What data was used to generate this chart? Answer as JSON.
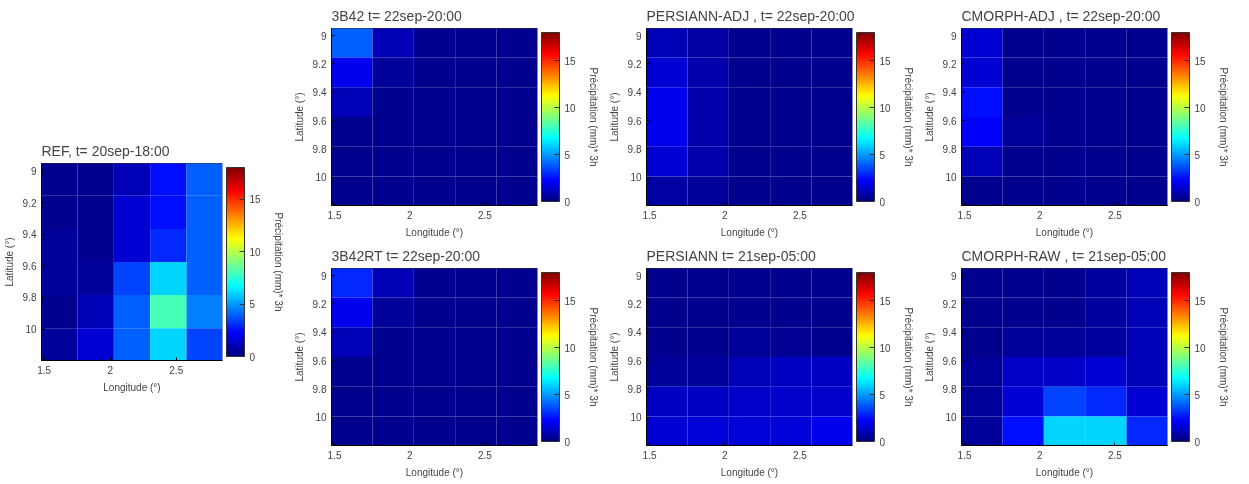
{
  "chart_data": [
    {
      "type": "heatmap",
      "title": "REF,   t= 20sep-18:00",
      "xlabel": "Longitude (°)",
      "ylabel": "Latitude (°)",
      "clabel": "Précipitation (mm)* 3h",
      "x": [
        1.615,
        1.89,
        2.165,
        2.44,
        2.715
      ],
      "y": [
        9.05,
        9.26,
        9.47,
        9.68,
        9.89,
        10.1
      ],
      "cells": [
        [
          0.3,
          0.3,
          1.0,
          2.5,
          4
        ],
        [
          0.3,
          0.3,
          1.5,
          2.5,
          4
        ],
        [
          0.5,
          0.3,
          1.5,
          3,
          4
        ],
        [
          0.5,
          0.5,
          3.5,
          6,
          4
        ],
        [
          0.3,
          1.0,
          4,
          8,
          4.5
        ],
        [
          0.5,
          1.5,
          4,
          6,
          3.5
        ]
      ],
      "xlim": [
        1.48,
        2.85
      ],
      "xticks": [
        1.5,
        2,
        2.5
      ],
      "ylim": [
        10.2,
        8.95
      ],
      "yticks": [
        9,
        9.2,
        9.4,
        9.6,
        9.8,
        10
      ],
      "clim": [
        0,
        18
      ],
      "cticks": [
        0,
        5,
        10,
        15
      ]
    },
    {
      "type": "heatmap",
      "title": "3B42    t= 22sep-20:00",
      "xlabel": "Longitude (°)",
      "ylabel": "Latitude (°)",
      "clabel": "Précipitation (mm)* 3h",
      "x": [
        1.615,
        1.89,
        2.165,
        2.44,
        2.715
      ],
      "y": [
        9.05,
        9.26,
        9.47,
        9.68,
        9.89,
        10.1
      ],
      "cells": [
        [
          4,
          1,
          0.3,
          0.3,
          0.3
        ],
        [
          2,
          0.5,
          0.3,
          0.3,
          0.3
        ],
        [
          1,
          0.3,
          0.3,
          0.3,
          0.3
        ],
        [
          0.3,
          0.3,
          0.3,
          0.3,
          0.3
        ],
        [
          0.3,
          0.3,
          0.3,
          0.3,
          0.3
        ],
        [
          0.3,
          0.3,
          0.3,
          0.3,
          0.3
        ]
      ],
      "xlim": [
        1.48,
        2.85
      ],
      "xticks": [
        1.5,
        2,
        2.5
      ],
      "ylim": [
        10.2,
        8.95
      ],
      "yticks": [
        9,
        9.2,
        9.4,
        9.6,
        9.8,
        10
      ],
      "clim": [
        0,
        18
      ],
      "cticks": [
        0,
        5,
        10,
        15
      ]
    },
    {
      "type": "heatmap",
      "title": "PERSIANN-ADJ ,   t= 22sep-20:00",
      "xlabel": "Longitude (°)",
      "ylabel": "Latitude (°)",
      "clabel": "Précipitation (mm)* 3h",
      "x": [
        1.615,
        1.89,
        2.165,
        2.44,
        2.715
      ],
      "y": [
        9.05,
        9.26,
        9.47,
        9.68,
        9.89,
        10.1
      ],
      "cells": [
        [
          1,
          0.7,
          0.3,
          0.3,
          0.3
        ],
        [
          1.5,
          0.8,
          0.3,
          0.3,
          0.3
        ],
        [
          2,
          0.8,
          0.3,
          0.3,
          0.3
        ],
        [
          2,
          0.8,
          0.3,
          0.3,
          0.3
        ],
        [
          1.5,
          0.8,
          0.3,
          0.3,
          0.3
        ],
        [
          0.7,
          0.5,
          0.3,
          0.3,
          0.3
        ]
      ],
      "xlim": [
        1.48,
        2.85
      ],
      "xticks": [
        1.5,
        2,
        2.5
      ],
      "ylim": [
        10.2,
        8.95
      ],
      "yticks": [
        9,
        9.2,
        9.4,
        9.6,
        9.8,
        10
      ],
      "clim": [
        0,
        18
      ],
      "cticks": [
        0,
        5,
        10,
        15
      ]
    },
    {
      "type": "heatmap",
      "title": "CMORPH-ADJ ,   t= 22sep-20:00",
      "xlabel": "Longitude (°)",
      "ylabel": "Latitude (°)",
      "clabel": "Précipitation (mm)* 3h",
      "x": [
        1.615,
        1.89,
        2.165,
        2.44,
        2.715
      ],
      "y": [
        9.05,
        9.26,
        9.47,
        9.68,
        9.89,
        10.1
      ],
      "cells": [
        [
          1.5,
          0.3,
          0.3,
          0.3,
          0.3
        ],
        [
          1.5,
          0.3,
          0.3,
          0.3,
          0.3
        ],
        [
          2.5,
          0.3,
          0.3,
          0.3,
          0.3
        ],
        [
          2.2,
          0.5,
          0.3,
          0.3,
          0.3
        ],
        [
          1,
          0.3,
          0.3,
          0.3,
          0.3
        ],
        [
          0.3,
          0.3,
          0.3,
          0.3,
          0.3
        ]
      ],
      "xlim": [
        1.48,
        2.85
      ],
      "xticks": [
        1.5,
        2,
        2.5
      ],
      "ylim": [
        10.2,
        8.95
      ],
      "yticks": [
        9,
        9.2,
        9.4,
        9.6,
        9.8,
        10
      ],
      "clim": [
        0,
        18
      ],
      "cticks": [
        0,
        5,
        10,
        15
      ]
    },
    {
      "type": "heatmap",
      "title": "3B42RT    t= 22sep-20:00",
      "xlabel": "Longitude (°)",
      "ylabel": "Latitude (°)",
      "clabel": "Précipitation (mm)* 3h",
      "x": [
        1.615,
        1.89,
        2.165,
        2.44,
        2.715
      ],
      "y": [
        9.05,
        9.26,
        9.47,
        9.68,
        9.89,
        10.1
      ],
      "cells": [
        [
          3,
          1,
          0.3,
          0.3,
          0.3
        ],
        [
          2,
          0.5,
          0.3,
          0.3,
          0.3
        ],
        [
          1,
          0.3,
          0.3,
          0.3,
          0.3
        ],
        [
          0.3,
          0.3,
          0.3,
          0.3,
          0.3
        ],
        [
          0.3,
          0.3,
          0.3,
          0.3,
          0.3
        ],
        [
          0.3,
          0.3,
          0.3,
          0.3,
          0.3
        ]
      ],
      "xlim": [
        1.48,
        2.85
      ],
      "xticks": [
        1.5,
        2,
        2.5
      ],
      "ylim": [
        10.2,
        8.95
      ],
      "yticks": [
        9,
        9.2,
        9.4,
        9.6,
        9.8,
        10
      ],
      "clim": [
        0,
        18
      ],
      "cticks": [
        0,
        5,
        10,
        15
      ]
    },
    {
      "type": "heatmap",
      "title": "PERSIANN    t= 21sep-05:00",
      "xlabel": "Longitude (°)",
      "ylabel": "Latitude (°)",
      "clabel": "Précipitation (mm)* 3h",
      "x": [
        1.615,
        1.89,
        2.165,
        2.44,
        2.715
      ],
      "y": [
        9.05,
        9.26,
        9.47,
        9.68,
        9.89,
        10.1
      ],
      "cells": [
        [
          0.3,
          0.3,
          0.3,
          0.3,
          0.3
        ],
        [
          0.3,
          0.3,
          0.3,
          0.3,
          0.3
        ],
        [
          0.3,
          0.3,
          0.5,
          0.4,
          0.3
        ],
        [
          0.5,
          0.5,
          1,
          1.2,
          1.2
        ],
        [
          1.2,
          1.2,
          1.4,
          1.4,
          1.4
        ],
        [
          1.5,
          1.6,
          1.6,
          1.6,
          2
        ]
      ],
      "xlim": [
        1.48,
        2.85
      ],
      "xticks": [
        1.5,
        2,
        2.5
      ],
      "ylim": [
        10.2,
        8.95
      ],
      "yticks": [
        9,
        9.2,
        9.4,
        9.6,
        9.8,
        10
      ],
      "clim": [
        0,
        18
      ],
      "cticks": [
        0,
        5,
        10,
        15
      ]
    },
    {
      "type": "heatmap",
      "title": "CMORPH-RAW ,   t= 21sep-05:00",
      "xlabel": "Longitude (°)",
      "ylabel": "Latitude (°)",
      "clabel": "Précipitation (mm)* 3h",
      "x": [
        1.615,
        1.89,
        2.165,
        2.44,
        2.715
      ],
      "y": [
        9.05,
        9.26,
        9.47,
        9.68,
        9.89,
        10.1
      ],
      "cells": [
        [
          0.3,
          0.3,
          0.3,
          0.6,
          1
        ],
        [
          0.3,
          0.3,
          0.3,
          0.6,
          1
        ],
        [
          0.3,
          0.5,
          0.5,
          0.6,
          1
        ],
        [
          0.5,
          1.3,
          1.3,
          1.5,
          1
        ],
        [
          0.5,
          1.5,
          3.5,
          3,
          1.5
        ],
        [
          0.5,
          2.5,
          6,
          6,
          3
        ]
      ],
      "xlim": [
        1.48,
        2.85
      ],
      "xticks": [
        1.5,
        2,
        2.5
      ],
      "ylim": [
        10.2,
        8.95
      ],
      "yticks": [
        9,
        9.2,
        9.4,
        9.6,
        9.8,
        10
      ],
      "clim": [
        0,
        18
      ],
      "cticks": [
        0,
        5,
        10,
        15
      ]
    }
  ]
}
